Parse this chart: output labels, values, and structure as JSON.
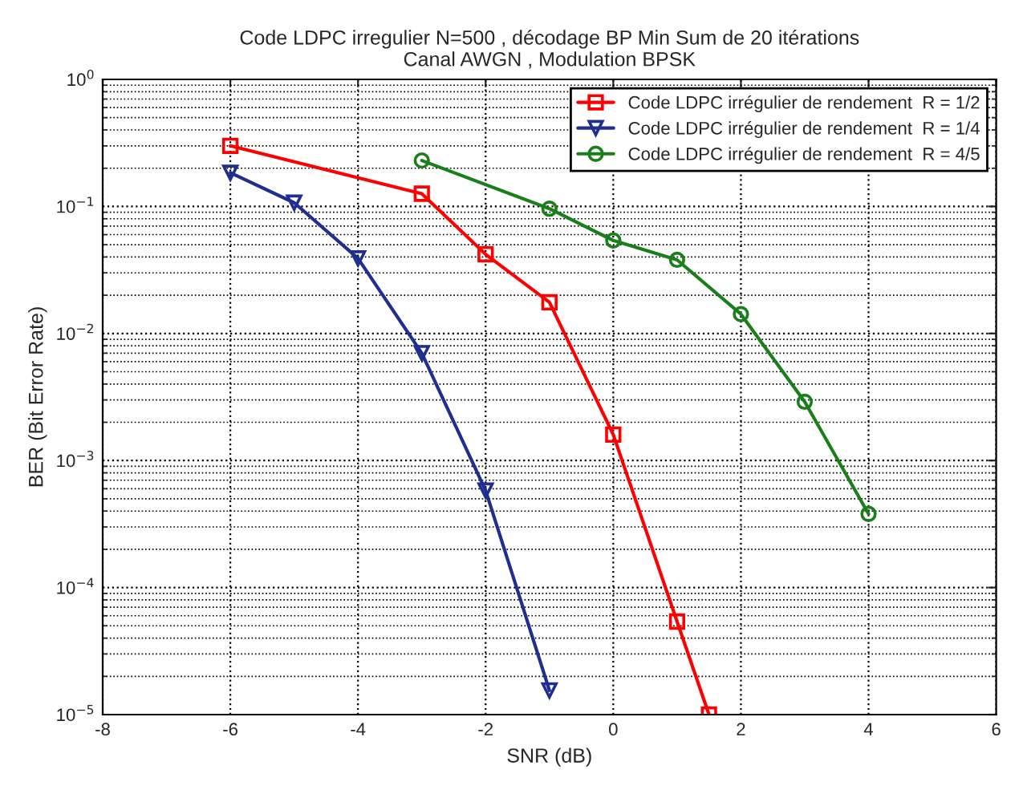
{
  "chart_data": {
    "type": "line",
    "title": "Code LDPC irregulier N=500 , décodage BP Min Sum de 20 itérations\nCanal AWGN , Modulation BPSK",
    "xlabel": "SNR (dB)",
    "ylabel": "BER (Bit Error Rate)",
    "log": "y",
    "xlim": [
      -8,
      6
    ],
    "xticks": [
      -8,
      -6,
      -4,
      -2,
      0,
      2,
      4,
      6
    ],
    "ylim": [
      1e-05,
      1
    ],
    "yticks": [
      {
        "value": 1e-05,
        "label": "10$^{−5}$"
      },
      {
        "value": 0.0001,
        "label": "10$^{−4}$"
      },
      {
        "value": 0.001,
        "label": "10$^{−3}$"
      },
      {
        "value": 0.01,
        "label": "10$^{−2}$"
      },
      {
        "value": 0.1,
        "label": "10$^{−1}$"
      },
      {
        "value": 1,
        "label": "10$^{0}$"
      }
    ],
    "grid": true,
    "legend": "top right",
    "line_style": "solid",
    "series": [
      {
        "name": "Code LDPC irrégulier de rendement  R = 1/2",
        "color": "#ff0000",
        "marker": "square",
        "x": [
          -6,
          -3,
          -2,
          -1,
          0,
          1,
          1.5
        ],
        "values": [
          0.3,
          0.126,
          0.042,
          0.0176,
          0.0016,
          5.4e-05,
          1e-05
        ]
      },
      {
        "name": "Code LDPC irrégulier de rendement  R = 1/4",
        "color": "#1f2f8f",
        "marker": "triangle",
        "x": [
          -6,
          -5,
          -4,
          -3,
          -2,
          -1
        ],
        "values": [
          0.184,
          0.107,
          0.039,
          0.007,
          0.00058,
          1.55e-05
        ]
      },
      {
        "name": "Code LDPC irrégulier de rendement  R = 4/5",
        "color": "#1a7f1a",
        "marker": "circle",
        "x": [
          -3,
          -1,
          0,
          1,
          2,
          3,
          4
        ],
        "values": [
          0.23,
          0.096,
          0.054,
          0.038,
          0.0142,
          0.0029,
          0.00038
        ]
      }
    ]
  }
}
